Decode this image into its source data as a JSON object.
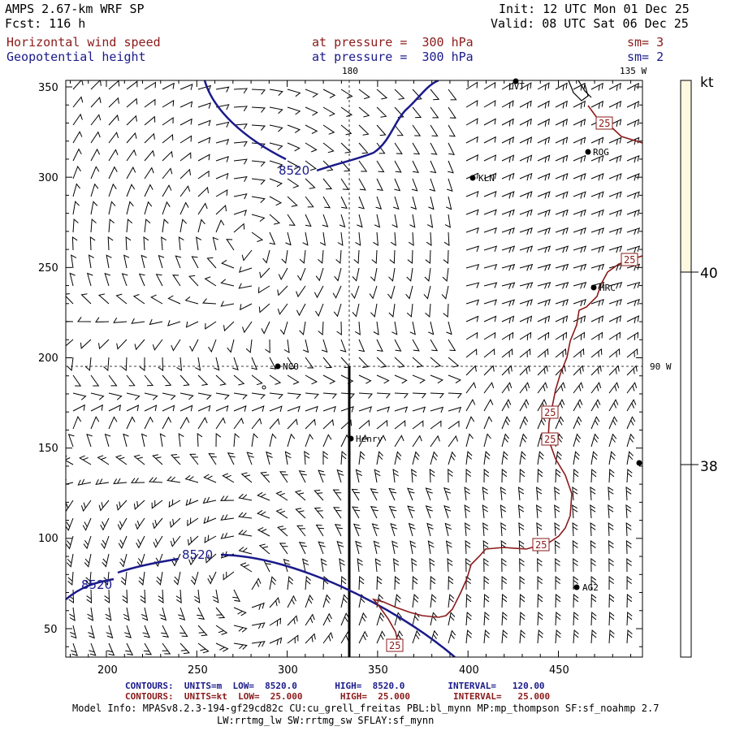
{
  "header": {
    "model": "AMPS 2.67-km WRF SP",
    "forecast": "Fcst: 116 h",
    "init": "Init: 12 UTC Mon 01 Dec 25",
    "valid": "Valid: 08 UTC Sat 06 Dec 25",
    "field1": "Horizontal wind speed",
    "field1_level": "at pressure =  300 hPa",
    "field1_sm": "sm= 3",
    "field2": "Geopotential height",
    "field2_level": "at pressure =  300 hPa",
    "field2_sm": "sm= 2"
  },
  "map": {
    "x_ticks": [
      "200",
      "250",
      "300",
      "350",
      "400",
      "450"
    ],
    "y_ticks": [
      "50",
      "100",
      "150",
      "200",
      "250",
      "300",
      "350"
    ],
    "lon_labels": {
      "top_180": "180",
      "top_135w": "135 W",
      "right_90w": "90 W"
    },
    "contour_labels": [
      "8520",
      "8520",
      "8520"
    ],
    "speed_labels": [
      "25",
      "25",
      "25",
      "25",
      "25",
      "25"
    ],
    "stations": [
      "LVT",
      "ROG",
      "KLN",
      "HRC",
      "NCO",
      "Henry",
      "AG2"
    ]
  },
  "colorbar": {
    "unit": "kt",
    "labels": [
      "40",
      "38"
    ],
    "colors": {
      "upper": "#fdf8e0",
      "lower": "#ffffff"
    }
  },
  "footer": {
    "line1": "CONTOURS:  UNITS=m  LOW=  8520.0       HIGH=  8520.0        INTERVAL=   120.00",
    "line2": "CONTOURS:  UNITS=kt  LOW=  25.000       HIGH=  25.000        INTERVAL=   25.000",
    "line3": "Model Info: MPASv8.2.3-194-gf29cd82c CU:cu_grell_freitas PBL:bl_mynn MP:mp_thompson SF:sf_noahmp 2.7",
    "line4": "LW:rrtmg_lw SW:rrtmg_sw SFLAY:sf_mynn"
  },
  "colors": {
    "height_contour": "#1a1a8b",
    "speed_contour": "#8b1a1a"
  }
}
